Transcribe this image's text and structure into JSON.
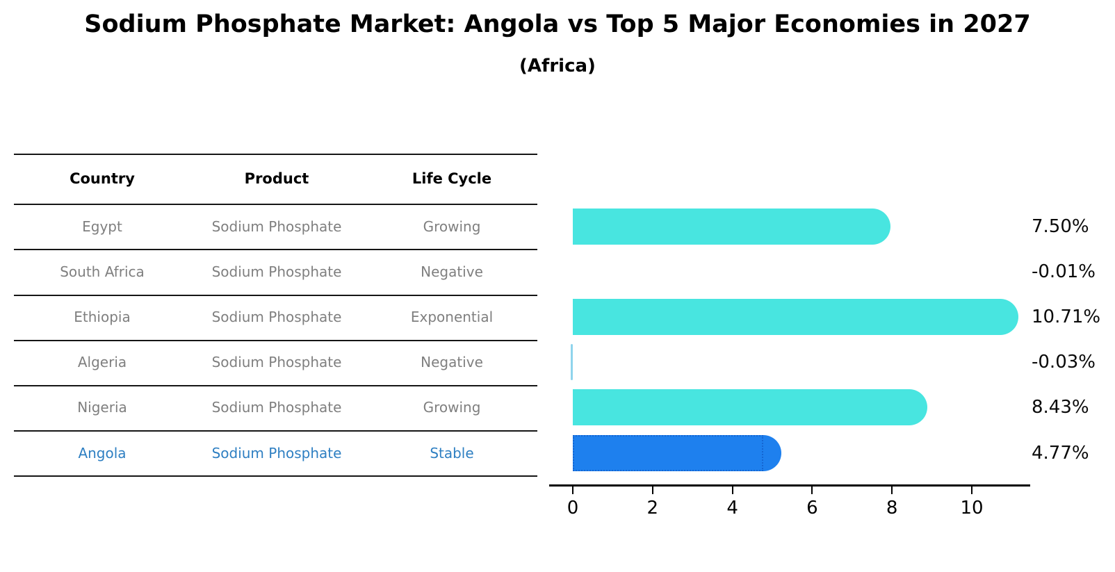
{
  "title": "Sodium Phosphate Market: Angola vs Top 5 Major Economies in 2027",
  "subtitle": "(Africa)",
  "table": {
    "columns": [
      "Country",
      "Product",
      "Life Cycle"
    ],
    "rows": [
      {
        "country": "Egypt",
        "product": "Sodium Phosphate",
        "life_cycle": "Growing",
        "highlight": false
      },
      {
        "country": "South Africa",
        "product": "Sodium Phosphate",
        "life_cycle": "Negative",
        "highlight": false
      },
      {
        "country": "Ethiopia",
        "product": "Sodium Phosphate",
        "life_cycle": "Exponential",
        "highlight": false
      },
      {
        "country": "Algeria",
        "product": "Sodium Phosphate",
        "life_cycle": "Negative",
        "highlight": false
      },
      {
        "country": "Nigeria",
        "product": "Sodium Phosphate",
        "life_cycle": "Growing",
        "highlight": false
      },
      {
        "country": "Angola",
        "product": "Sodium Phosphate",
        "life_cycle": "Stable",
        "highlight": true
      }
    ]
  },
  "chart_data": {
    "type": "bar",
    "orientation": "horizontal",
    "title": "Sodium Phosphate Market: Angola vs Top 5 Major Economies in 2027",
    "subtitle": "(Africa)",
    "categories": [
      "Egypt",
      "South Africa",
      "Ethiopia",
      "Algeria",
      "Nigeria",
      "Angola"
    ],
    "values": [
      7.5,
      -0.01,
      10.71,
      -0.03,
      8.43,
      4.77
    ],
    "value_labels": [
      "7.50%",
      "-0.01%",
      "10.71%",
      "-0.03%",
      "8.43%",
      "4.77%"
    ],
    "x_ticks": [
      "0",
      "2",
      "4",
      "6",
      "8",
      "10"
    ],
    "xlim": [
      -0.6,
      11.4
    ],
    "grid": false,
    "legend": false,
    "highlight_index": 5,
    "colors": {
      "bar": "#48E5E0",
      "highlight_fill": "#1E80EE",
      "highlight_border": "#1566D2",
      "highlight_text": "#2E7FC2",
      "row_text": "#7F7F7F",
      "axis": "#000000",
      "negative_sliver": "#8FD4EC"
    }
  }
}
